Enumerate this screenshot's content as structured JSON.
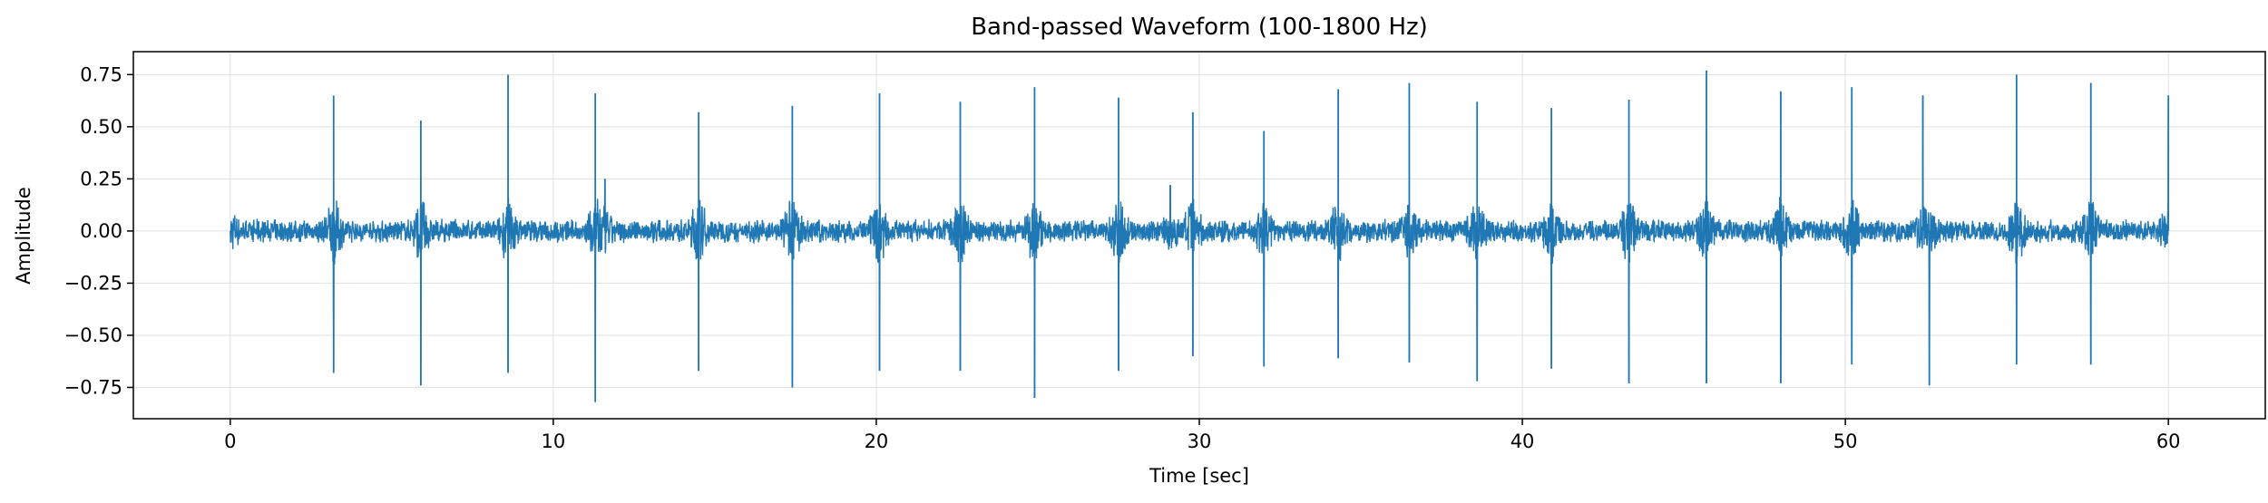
{
  "chart_data": {
    "type": "line",
    "title": "Band-passed Waveform (100-1800 Hz)",
    "xlabel": "Time [sec]",
    "ylabel": "Amplitude",
    "xlim": [
      -3,
      63
    ],
    "ylim": [
      -0.9,
      0.86
    ],
    "grid": true,
    "line_color": "#1f77b4",
    "x_ticks": [
      0,
      10,
      20,
      30,
      40,
      50,
      60
    ],
    "x_tick_labels": [
      "0",
      "10",
      "20",
      "30",
      "40",
      "50",
      "60"
    ],
    "y_ticks": [
      0.75,
      0.5,
      0.25,
      0.0,
      -0.25,
      -0.5,
      -0.75
    ],
    "y_tick_labels": [
      "0.75",
      "0.50",
      "0.25",
      "0.00",
      "−0.25",
      "−0.50",
      "−0.75"
    ],
    "series": [
      {
        "values_description_free": true,
        "x": [
          0,
          3.2,
          3.2,
          5.9,
          5.9,
          8.6,
          8.6,
          11.3,
          11.3,
          11.6,
          14.5,
          14.5,
          17.4,
          17.4,
          20.1,
          20.1,
          22.6,
          22.6,
          24.9,
          24.9,
          27.5,
          27.5,
          29.1,
          29.8,
          29.8,
          32.0,
          32.0,
          34.3,
          34.3,
          36.5,
          36.5,
          38.6,
          38.6,
          40.9,
          40.9,
          43.3,
          43.3,
          45.7,
          45.7,
          48.0,
          48.0,
          50.2,
          50.2,
          52.4,
          52.6,
          55.3,
          55.3,
          57.6,
          57.6,
          60.0
        ],
        "y": [
          0.0,
          0.65,
          -0.68,
          0.53,
          -0.74,
          0.75,
          -0.68,
          0.66,
          -0.82,
          0.25,
          0.57,
          -0.67,
          0.6,
          -0.75,
          0.66,
          -0.67,
          0.62,
          -0.67,
          0.69,
          -0.8,
          0.64,
          -0.67,
          0.22,
          0.57,
          -0.6,
          0.48,
          -0.65,
          0.68,
          -0.61,
          0.71,
          -0.63,
          0.62,
          -0.72,
          0.59,
          -0.66,
          0.63,
          -0.73,
          0.77,
          -0.73,
          0.67,
          -0.73,
          0.69,
          -0.64,
          0.65,
          -0.74,
          0.75,
          -0.64,
          0.71,
          -0.64,
          0.65
        ]
      }
    ]
  }
}
